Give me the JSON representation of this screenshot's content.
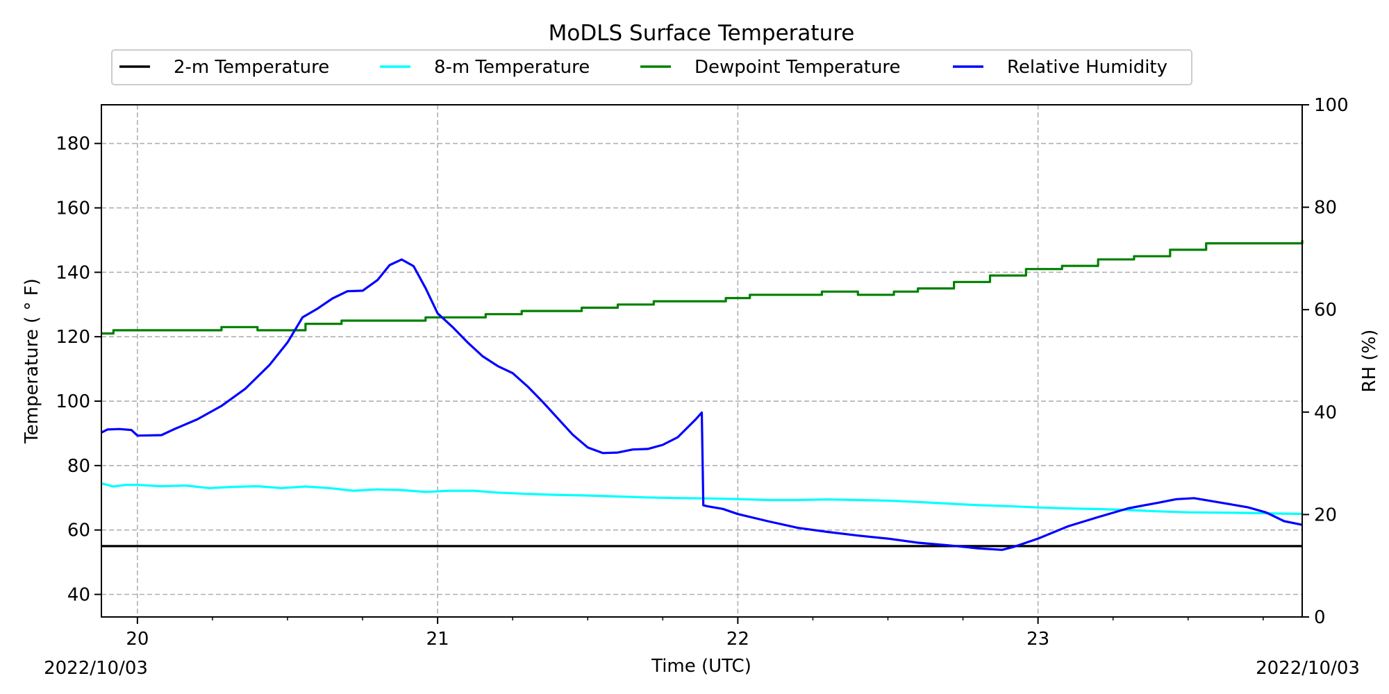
{
  "chart_data": {
    "type": "line",
    "title": "MoDLS Surface Temperature",
    "xlabel": "Time (UTC)",
    "ylabel": "Temperature ($^\\circ$F)",
    "ylabel_display": "Temperature ( ° F)",
    "y2label": "RH (%)",
    "x_start_label": "2022/10/03",
    "x_end_label": "2022/10/03",
    "xlim": [
      19.88,
      23.88
    ],
    "ylim": [
      33,
      192
    ],
    "y2lim": [
      0,
      100
    ],
    "x_ticks": [
      20,
      21,
      22,
      23
    ],
    "x_tick_labels": [
      "20",
      "21",
      "22",
      "23"
    ],
    "x_minor_step": 0.25,
    "y_ticks": [
      40,
      60,
      80,
      100,
      120,
      140,
      160,
      180
    ],
    "y_tick_labels": [
      "40",
      "60",
      "80",
      "100",
      "120",
      "140",
      "160",
      "180"
    ],
    "y2_ticks": [
      0,
      20,
      40,
      60,
      80,
      100
    ],
    "y2_tick_labels": [
      "0",
      "20",
      "40",
      "60",
      "80",
      "100"
    ],
    "grid": true,
    "legend": {
      "placement": "top-center",
      "columns": 4
    },
    "series": [
      {
        "name": "2-m Temperature",
        "color": "#000000",
        "axis": "left",
        "step": false,
        "x": [
          19.88,
          23.88
        ],
        "y": [
          55,
          55
        ]
      },
      {
        "name": "8-m Temperature",
        "color": "#00ffff",
        "axis": "left",
        "step": false,
        "x": [
          19.88,
          19.92,
          19.96,
          20.0,
          20.08,
          20.16,
          20.24,
          20.32,
          20.4,
          20.48,
          20.56,
          20.64,
          20.72,
          20.8,
          20.88,
          20.96,
          21.04,
          21.12,
          21.2,
          21.3,
          21.4,
          21.5,
          21.6,
          21.7,
          21.8,
          21.9,
          22.0,
          22.1,
          22.2,
          22.3,
          22.4,
          22.5,
          22.6,
          22.7,
          22.8,
          22.9,
          23.0,
          23.1,
          23.2,
          23.3,
          23.4,
          23.5,
          23.6,
          23.7,
          23.8,
          23.88
        ],
        "y": [
          74.5,
          73.5,
          74.0,
          74.0,
          73.6,
          73.8,
          73.0,
          73.4,
          73.6,
          73.0,
          73.5,
          73.0,
          72.2,
          72.6,
          72.4,
          71.8,
          72.2,
          72.2,
          71.6,
          71.2,
          70.9,
          70.7,
          70.4,
          70.1,
          69.9,
          69.8,
          69.6,
          69.3,
          69.3,
          69.5,
          69.3,
          69.1,
          68.7,
          68.2,
          67.7,
          67.4,
          67.0,
          66.7,
          66.5,
          66.2,
          65.8,
          65.5,
          65.4,
          65.3,
          65.1,
          65.0
        ]
      },
      {
        "name": "Dewpoint Temperature",
        "color": "#008000",
        "axis": "left",
        "step": true,
        "x": [
          19.88,
          19.92,
          20.08,
          20.2,
          20.28,
          20.4,
          20.56,
          20.68,
          20.8,
          20.96,
          21.04,
          21.16,
          21.28,
          21.4,
          21.48,
          21.6,
          21.72,
          21.84,
          21.96,
          22.04,
          22.16,
          22.28,
          22.4,
          22.52,
          22.6,
          22.72,
          22.84,
          22.96,
          23.08,
          23.2,
          23.32,
          23.44,
          23.56,
          23.68,
          23.8,
          23.88
        ],
        "y": [
          121,
          122,
          122,
          122,
          123,
          122,
          124,
          125,
          125,
          126,
          126,
          127,
          128,
          128,
          129,
          130,
          131,
          131,
          132,
          133,
          133,
          134,
          133,
          134,
          135,
          137,
          139,
          141,
          142,
          144,
          145,
          147,
          149,
          149,
          149,
          150
        ]
      },
      {
        "name": "Relative Humidity",
        "color": "#0000ff",
        "axis": "right",
        "step": false,
        "x": [
          19.88,
          19.9,
          19.94,
          19.98,
          20.0,
          20.08,
          20.12,
          20.2,
          20.28,
          20.36,
          20.44,
          20.5,
          20.55,
          20.6,
          20.65,
          20.7,
          20.75,
          20.8,
          20.84,
          20.88,
          20.92,
          20.96,
          21.0,
          21.05,
          21.1,
          21.15,
          21.2,
          21.25,
          21.3,
          21.35,
          21.4,
          21.45,
          21.5,
          21.55,
          21.6,
          21.65,
          21.7,
          21.75,
          21.8,
          21.86,
          21.88,
          21.885,
          21.9,
          21.95,
          22.0,
          22.1,
          22.2,
          22.3,
          22.4,
          22.5,
          22.6,
          22.7,
          22.8,
          22.88,
          22.92,
          23.0,
          23.1,
          23.2,
          23.3,
          23.4,
          23.46,
          23.52,
          23.58,
          23.64,
          23.7,
          23.76,
          23.82,
          23.88
        ],
        "y": [
          36,
          36.6,
          36.7,
          36.5,
          35.4,
          35.5,
          36.6,
          38.6,
          41.2,
          44.6,
          49.2,
          53.6,
          58.5,
          60.2,
          62.2,
          63.6,
          63.7,
          65.8,
          68.7,
          69.8,
          68.5,
          64.2,
          59.3,
          56.6,
          53.6,
          50.9,
          49.0,
          47.6,
          45.0,
          42.0,
          38.8,
          35.6,
          33.1,
          32.0,
          32.1,
          32.7,
          32.8,
          33.6,
          35.1,
          38.6,
          39.9,
          21.8,
          21.6,
          21.1,
          20.1,
          18.7,
          17.4,
          16.6,
          15.9,
          15.3,
          14.5,
          14.0,
          13.4,
          13.1,
          13.7,
          15.3,
          17.7,
          19.5,
          21.2,
          22.3,
          23.0,
          23.2,
          22.6,
          22.0,
          21.4,
          20.4,
          18.7,
          18.0
        ]
      }
    ]
  }
}
